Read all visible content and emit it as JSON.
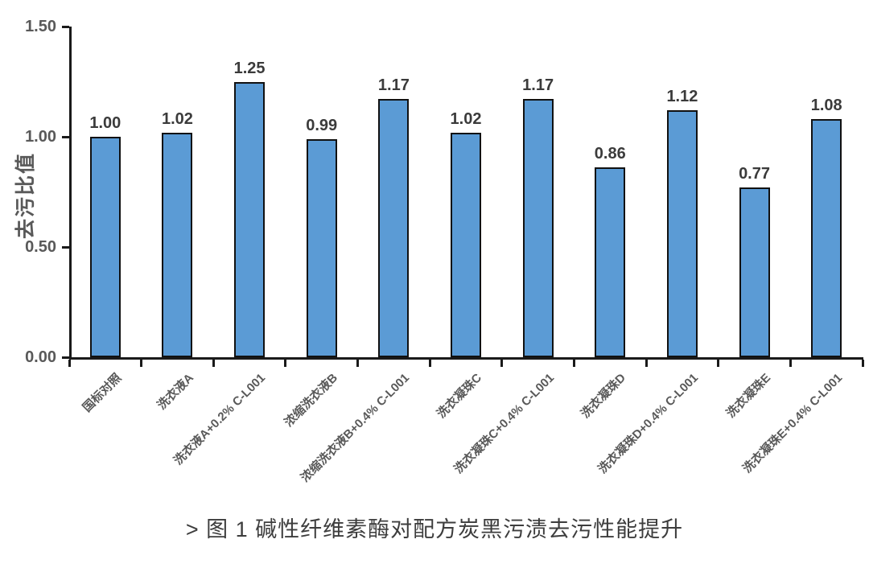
{
  "chart_data": {
    "type": "bar",
    "title": "",
    "xlabel": "",
    "ylabel": "去污比值",
    "ylim": [
      0,
      1.5
    ],
    "ytick_labels": [
      "0.00",
      "0.50",
      "1.00",
      "1.50"
    ],
    "ytick_values": [
      0,
      0.5,
      1.0,
      1.5
    ],
    "grid": false,
    "legend": null,
    "categories": [
      "国标对照",
      "洗衣液A",
      "洗衣液A+0.2% C-L001",
      "浓缩洗衣液B",
      "浓缩洗衣液B+0.4% C-L001",
      "洗衣凝珠C",
      "洗衣凝珠C+0.4% C-L001",
      "洗衣凝珠D",
      "洗衣凝珠D+0.4% C-L001",
      "洗衣凝珠E",
      "洗衣凝珠E+0.4% C-L001"
    ],
    "values": [
      1.0,
      1.02,
      1.25,
      0.99,
      1.17,
      1.02,
      1.17,
      0.86,
      1.12,
      0.77,
      1.08
    ],
    "value_labels": [
      "1.00",
      "1.02",
      "1.25",
      "0.99",
      "1.17",
      "1.02",
      "1.17",
      "0.86",
      "1.12",
      "0.77",
      "1.08"
    ]
  },
  "caption": "> 图 1 碱性纤维素酶对配方炭黑污渍去污性能提升",
  "colors": {
    "bar_fill": "#5B9BD5",
    "bar_border": "#111111",
    "axis_color": "#1a1a1a",
    "tick_label_color": "#595959",
    "value_label_color": "#3b3b3b",
    "caption_color": "#3d3d3d",
    "bg": "#ffffff"
  }
}
